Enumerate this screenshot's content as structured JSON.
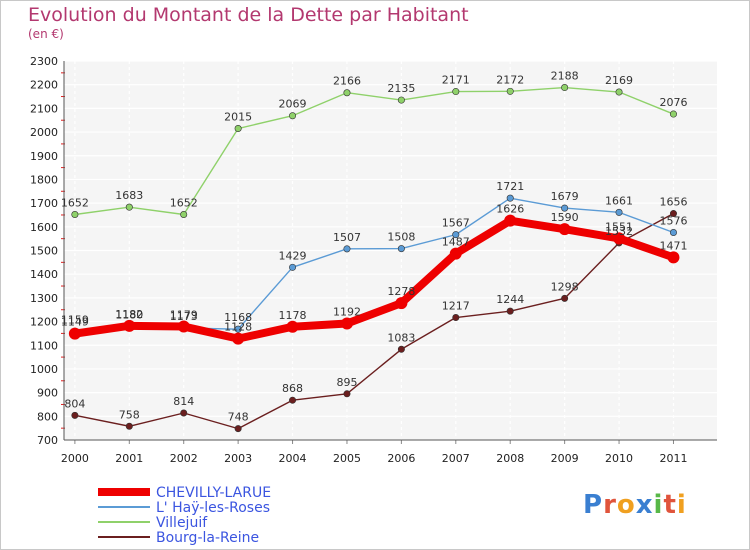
{
  "chart_data": {
    "type": "line",
    "title": "Evolution du Montant de la Dette par Habitant",
    "subtitle": "(en €)",
    "x": [
      "2000",
      "2001",
      "2002",
      "2003",
      "2004",
      "2005",
      "2006",
      "2007",
      "2008",
      "2009",
      "2010",
      "2011"
    ],
    "ylim": [
      700,
      2300
    ],
    "yticks": [
      700,
      800,
      900,
      1000,
      1100,
      1200,
      1300,
      1400,
      1500,
      1600,
      1700,
      1800,
      1900,
      2000,
      2100,
      2200,
      2300
    ],
    "grid": true,
    "legend": "bottom-left",
    "series": [
      {
        "name": "CHEVILLY-LARUE",
        "color": "#ee0000",
        "values": [
          1149,
          1182,
          1179,
          1128,
          1178,
          1192,
          1278,
          1487,
          1626,
          1590,
          1551,
          1471
        ]
      },
      {
        "name": "L' Haÿ-les-Roses",
        "color": "#5b9bd5",
        "values": [
          1159,
          1180,
          1173,
          1168,
          1429,
          1507,
          1508,
          1567,
          1721,
          1679,
          1661,
          1576
        ]
      },
      {
        "name": "Villejuif",
        "color": "#8fd16a",
        "values": [
          1652,
          1683,
          1652,
          2015,
          2069,
          2166,
          2135,
          2171,
          2172,
          2188,
          2169,
          2076
        ]
      },
      {
        "name": "Bourg-la-Reine",
        "color": "#6b1f1f",
        "values": [
          804,
          758,
          814,
          748,
          868,
          895,
          1083,
          1217,
          1244,
          1298,
          1532,
          1656
        ]
      }
    ]
  },
  "logo": {
    "text": "Proxiti",
    "colors": [
      "#3a7fd1",
      "#e0543c",
      "#f0a020",
      "#3a7fd1",
      "#58b848",
      "#e0543c",
      "#f0a020"
    ]
  }
}
